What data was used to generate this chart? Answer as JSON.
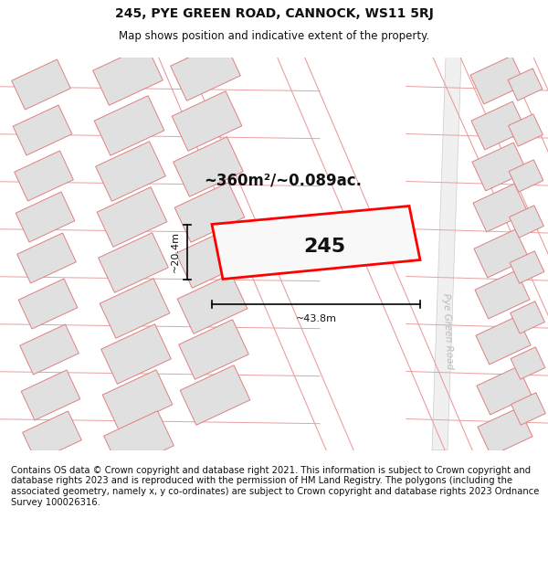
{
  "title": "245, PYE GREEN ROAD, CANNOCK, WS11 5RJ",
  "subtitle": "Map shows position and indicative extent of the property.",
  "footer": "Contains OS data © Crown copyright and database right 2021. This information is subject to Crown copyright and database rights 2023 and is reproduced with the permission of HM Land Registry. The polygons (including the associated geometry, namely x, y co-ordinates) are subject to Crown copyright and database rights 2023 Ordnance Survey 100026316.",
  "area_text": "~360m²/~0.089ac.",
  "width_text": "~43.8m",
  "height_text": "~20.4m",
  "property_number": "245",
  "bg_color": "#ffffff",
  "map_bg": "#ffffff",
  "building_fill": "#e0e0e0",
  "building_stroke": "#e08080",
  "plot_stroke": "#e8a0a0",
  "road_label_color": "#bbbbbb",
  "highlight_fill": "#f8f8f8",
  "highlight_stroke": "#ff0000",
  "title_fontsize": 10,
  "subtitle_fontsize": 8.5,
  "footer_fontsize": 7.2,
  "area_fontsize": 12,
  "dim_fontsize": 8,
  "num_fontsize": 16
}
